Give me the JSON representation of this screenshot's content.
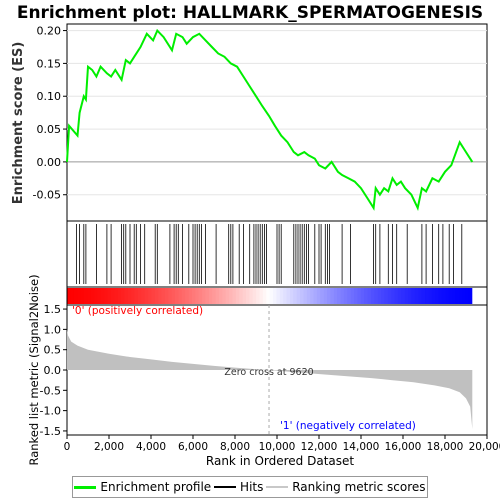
{
  "chart_data": {
    "type": "line",
    "title": "Enrichment plot: HALLMARK_SPERMATOGENESIS",
    "top_panel": {
      "ylabel": "Enrichment score (ES)",
      "ylim": [
        -0.09,
        0.21
      ],
      "yticks": [
        "0.20",
        "0.15",
        "0.10",
        "0.05",
        "0.00",
        "-0.05"
      ],
      "series": [
        {
          "name": "Enrichment profile",
          "color": "#00ee00",
          "x": [
            0,
            100,
            500,
            600,
            800,
            900,
            1000,
            1200,
            1400,
            1600,
            1900,
            2100,
            2300,
            2600,
            2800,
            3000,
            3200,
            3500,
            3800,
            4100,
            4300,
            4600,
            5000,
            5200,
            5500,
            5700,
            6000,
            6300,
            6600,
            6900,
            7200,
            7500,
            7800,
            8100,
            8400,
            8700,
            9000,
            9300,
            9620,
            9900,
            10200,
            10500,
            10800,
            11000,
            11300,
            11500,
            11800,
            12000,
            12300,
            12600,
            12900,
            13100,
            13400,
            13700,
            14000,
            14300,
            14600,
            14700,
            14900,
            15100,
            15300,
            15500,
            15700,
            15900,
            16100,
            16400,
            16700,
            16900,
            17100,
            17400,
            17700,
            18000,
            18300,
            18700,
            19000,
            19300
          ],
          "y": [
            0.0,
            0.055,
            0.04,
            0.075,
            0.1,
            0.095,
            0.145,
            0.14,
            0.13,
            0.145,
            0.135,
            0.13,
            0.14,
            0.125,
            0.155,
            0.15,
            0.16,
            0.175,
            0.195,
            0.185,
            0.2,
            0.19,
            0.17,
            0.195,
            0.19,
            0.18,
            0.19,
            0.195,
            0.185,
            0.175,
            0.165,
            0.16,
            0.15,
            0.145,
            0.13,
            0.115,
            0.1,
            0.085,
            0.07,
            0.055,
            0.04,
            0.03,
            0.015,
            0.01,
            0.015,
            0.01,
            0.005,
            -0.005,
            -0.01,
            0.0,
            -0.015,
            -0.02,
            -0.025,
            -0.03,
            -0.04,
            -0.055,
            -0.07,
            -0.04,
            -0.05,
            -0.04,
            -0.045,
            -0.025,
            -0.035,
            -0.03,
            -0.04,
            -0.05,
            -0.07,
            -0.04,
            -0.045,
            -0.025,
            -0.03,
            -0.015,
            -0.005,
            0.03,
            0.015,
            0.0
          ]
        }
      ]
    },
    "hits_panel": {
      "legend_name": "Hits",
      "hit_positions": [
        450,
        600,
        800,
        900,
        1400,
        1900,
        2100,
        2600,
        2700,
        2800,
        3000,
        3200,
        3300,
        3500,
        3700,
        4200,
        4300,
        4900,
        5100,
        5200,
        5300,
        5500,
        5800,
        6000,
        6100,
        6200,
        6300,
        6400,
        6600,
        7100,
        7700,
        7800,
        7900,
        8200,
        8400,
        8700,
        8900,
        9000,
        9100,
        9200,
        9300,
        9400,
        9500,
        10000,
        10100,
        10200,
        10800,
        10900,
        11000,
        11100,
        11200,
        11300,
        11400,
        11500,
        11800,
        12000,
        12100,
        12300,
        12400,
        12500,
        13100,
        13500,
        14600,
        14700,
        14900,
        15300,
        15500,
        15700,
        16200,
        16900,
        17100,
        17400,
        17700,
        17900,
        18200,
        18400,
        18800
      ]
    },
    "ranked_panel": {
      "ylabel": "Ranked list metric (Signal2Noise)",
      "legend_name": "Ranking metric scores",
      "xlabel": "Rank in Ordered Dataset",
      "xlim": [
        0,
        20000
      ],
      "xticks": [
        "0",
        "2,000",
        "4,000",
        "6,000",
        "8,000",
        "10,000",
        "12,000",
        "14,000",
        "16,000",
        "18,000",
        "20,000"
      ],
      "ylim": [
        -1.6,
        1.6
      ],
      "yticks": [
        "1.5",
        "1.0",
        "0.5",
        "0.0",
        "-0.5",
        "-1.0",
        "-1.5"
      ],
      "zero_cross_label": "Zero cross at 9620",
      "zero_cross": 9620,
      "positive_label": "'0' (positively correlated)",
      "negative_label": "'1' (negatively correlated)",
      "x": [
        0,
        50,
        200,
        500,
        1000,
        2000,
        3000,
        4000,
        5000,
        6000,
        7000,
        8000,
        9000,
        9620,
        10500,
        11500,
        12500,
        13500,
        14500,
        15500,
        16500,
        17500,
        18200,
        18700,
        19000,
        19200,
        19300
      ],
      "y": [
        1.0,
        0.85,
        0.7,
        0.6,
        0.5,
        0.4,
        0.32,
        0.26,
        0.2,
        0.15,
        0.1,
        0.06,
        0.02,
        0.0,
        -0.04,
        -0.08,
        -0.12,
        -0.16,
        -0.2,
        -0.25,
        -0.3,
        -0.38,
        -0.45,
        -0.55,
        -0.7,
        -0.9,
        -1.45
      ]
    },
    "legend_entries": [
      "Enrichment profile",
      "Hits",
      "Ranking metric scores"
    ],
    "total_ranks": 19300
  },
  "colors": {
    "profile": "#00ee00",
    "fill": "#c0c0c0",
    "positive": "#ff0000",
    "negative": "#0000ff",
    "pos_label": "#ff0000",
    "neg_label": "#0000ff"
  }
}
